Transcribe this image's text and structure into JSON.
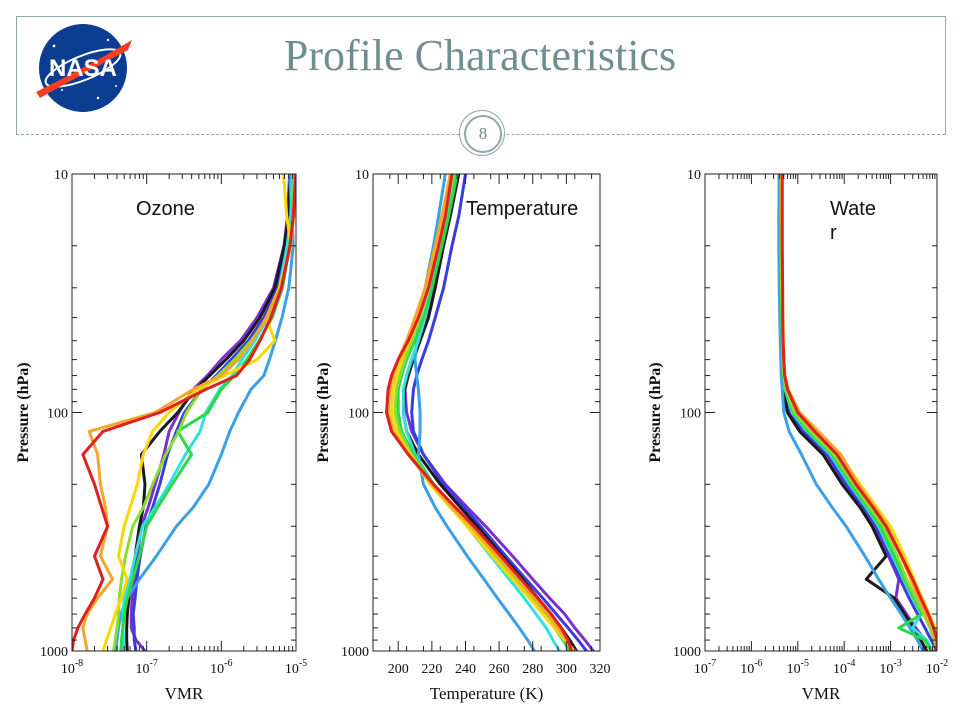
{
  "slide": {
    "title": "Profile Characteristics",
    "page_number": "8"
  },
  "logo": {
    "text": "NASA"
  },
  "colors": {
    "accent": "#6f8f8f",
    "series_palette": [
      "#7b2fd0",
      "#3b3be0",
      "#1a1a1a",
      "#3aa0e8",
      "#33e0e0",
      "#2ad84a",
      "#88dd33",
      "#ffd700",
      "#f2a62a",
      "#e02020"
    ]
  },
  "chart_data": [
    {
      "type": "line",
      "panel_label": "Ozone",
      "xlabel": "VMR",
      "ylabel": "Pressure (hPa)",
      "xscale": "log",
      "yscale": "log",
      "xlim": [
        1e-08,
        1e-05
      ],
      "ylim": [
        1000,
        10
      ],
      "x_ticks": [
        1e-08,
        1e-07,
        1e-06,
        1e-05
      ],
      "x_tick_labels": [
        {
          "base": "10",
          "exp": "-8"
        },
        {
          "base": "10",
          "exp": "-7"
        },
        {
          "base": "10",
          "exp": "-6"
        },
        {
          "base": "10",
          "exp": "-5"
        }
      ],
      "y_ticks": [
        10,
        100,
        1000
      ],
      "y_tick_labels": [
        "10",
        "100",
        "1000"
      ],
      "pressure_levels": [
        10,
        15,
        20,
        30,
        40,
        50,
        60,
        70,
        80,
        100,
        120,
        150,
        200,
        250,
        300,
        400,
        500,
        600,
        700,
        800,
        900,
        1000
      ],
      "series": [
        {
          "color": "#7b2fd0",
          "x": [
            8.2e-06,
            7.7e-06,
            6.9e-06,
            5e-06,
            3e-06,
            1.8e-06,
            1e-06,
            6.5e-07,
            4.2e-07,
            2.7e-07,
            2e-07,
            1.7e-07,
            1.3e-07,
            1.05e-07,
            8.5e-08,
            7.5e-08,
            6.8e-08,
            6.4e-08,
            6.2e-08,
            6.2e-08,
            7.2e-08,
            9.5e-08
          ]
        },
        {
          "color": "#3b3be0",
          "x": [
            8.6e-06,
            8e-06,
            7.2e-06,
            5.5e-06,
            3.7e-06,
            2.3e-06,
            1.35e-06,
            8.5e-07,
            5.5e-07,
            3.2e-07,
            2.5e-07,
            1.9e-07,
            1.5e-07,
            1.2e-07,
            9.8e-08,
            8.2e-08,
            7.4e-08,
            7e-08,
            6.6e-08,
            6.8e-08,
            6.8e-08,
            7.2e-08
          ]
        },
        {
          "color": "#1a1a1a",
          "x": [
            8.4e-06,
            7.9e-06,
            7e-06,
            5.2e-06,
            3.3e-06,
            2e-06,
            1.15e-06,
            7e-07,
            4.5e-07,
            2.6e-07,
            1.5e-07,
            8.5e-08,
            9.5e-08,
            9e-08,
            8e-08,
            7e-08,
            6.2e-08,
            5.8e-08,
            5.5e-08,
            5.4e-08,
            5.4e-08,
            5.5e-08
          ]
        },
        {
          "color": "#3aa0e8",
          "x": [
            8.2e-06,
            8.8e-06,
            9.2e-06,
            8e-06,
            6.5e-06,
            5.3e-06,
            4.4e-06,
            3.7e-06,
            2.5e-06,
            1.7e-06,
            1.3e-06,
            1e-06,
            6.8e-07,
            4.2e-07,
            2.5e-07,
            1.35e-07,
            8e-08,
            5.5e-08,
            4.5e-08,
            4.2e-08,
            4e-08,
            3.9e-08
          ]
        },
        {
          "color": "#33e0e0",
          "x": [
            9e-06,
            8.5e-06,
            7.6e-06,
            6e-06,
            4.2e-06,
            2.8e-06,
            1.9e-06,
            1.4e-06,
            9.5e-07,
            6.2e-07,
            5.2e-07,
            3.3e-07,
            2e-07,
            1.3e-07,
            8.8e-08,
            7e-08,
            6e-08,
            5e-08,
            4.8e-08,
            4.8e-08,
            4.9e-08,
            5e-08
          ]
        },
        {
          "color": "#2ad84a",
          "x": [
            9.5e-06,
            9e-06,
            8.2e-06,
            6.6e-06,
            4.8e-06,
            3.2e-06,
            2.2e-06,
            1.5e-06,
            1e-06,
            6.6e-07,
            2.6e-07,
            4e-07,
            2.2e-07,
            1.4e-07,
            1e-07,
            8e-08,
            6.5e-08,
            5.5e-08,
            5e-08,
            4.8e-08,
            4.6e-08,
            4.5e-08
          ]
        },
        {
          "color": "#88dd33",
          "x": [
            9.6e-06,
            9.1e-06,
            8.3e-06,
            6.4e-06,
            4.2e-06,
            2.5e-06,
            1.5e-06,
            9e-07,
            5.5e-07,
            3.4e-07,
            2.7e-07,
            1.8e-07,
            1.2e-07,
            9e-08,
            6.5e-08,
            5.2e-08,
            4.6e-08,
            4.3e-08,
            4.2e-08,
            4e-08,
            3.8e-08,
            3.6e-08
          ]
        },
        {
          "color": "#ffd700",
          "x": [
            6.8e-06,
            7.5e-06,
            8.6e-06,
            6e-06,
            4e-06,
            5.2e-06,
            3e-06,
            1.1e-06,
            4.8e-07,
            2e-07,
            1.2e-07,
            9e-08,
            7.5e-08,
            6e-08,
            5e-08,
            4.2e-08,
            5.5e-08,
            4.6e-08,
            3.8e-08,
            3.3e-08,
            2.9e-08,
            2.6e-08
          ]
        },
        {
          "color": "#f2a62a",
          "x": [
            9.9e-06,
            9.4e-06,
            8.4e-06,
            6.2e-06,
            4e-06,
            2.6e-06,
            1.7e-06,
            1e-06,
            4.2e-07,
            1.3e-07,
            1.7e-08,
            2.2e-08,
            2.4e-08,
            2.8e-08,
            3e-08,
            2.4e-08,
            3.5e-08,
            2.2e-08,
            1.6e-08,
            1.4e-08,
            1.5e-08,
            1.6e-08
          ]
        },
        {
          "color": "#e02020",
          "x": [
            9.9e-06,
            9.2e-06,
            8.3e-06,
            6.4e-06,
            4.6e-06,
            3.3e-06,
            2.4e-06,
            1.6e-06,
            6.2e-07,
            1.5e-07,
            2.6e-08,
            1.4e-08,
            2e-08,
            2.5e-08,
            3e-08,
            2e-08,
            2.6e-08,
            2e-08,
            1.5e-08,
            1.2e-08,
            1.05e-08,
            1e-08
          ]
        }
      ]
    },
    {
      "type": "line",
      "panel_label": "Temperature",
      "xlabel": "Temperature (K)",
      "ylabel": "Pressure (hPa)",
      "xscale": "linear",
      "yscale": "log",
      "xlim": [
        185,
        320
      ],
      "ylim": [
        1000,
        10
      ],
      "x_ticks": [
        200,
        220,
        240,
        260,
        280,
        300,
        320
      ],
      "x_tick_labels": [
        "200",
        "220",
        "240",
        "260",
        "280",
        "300",
        "320"
      ],
      "y_ticks": [
        10,
        100,
        1000
      ],
      "y_tick_labels": [
        "10",
        "100",
        "1000"
      ],
      "pressure_levels": [
        10,
        15,
        20,
        30,
        40,
        50,
        60,
        70,
        80,
        100,
        120,
        150,
        200,
        250,
        300,
        400,
        500,
        600,
        700,
        800,
        900,
        1000
      ],
      "series": [
        {
          "color": "#7b2fd0",
          "x": [
            235,
            230,
            226,
            221,
            217,
            212,
            208,
            205,
            204,
            205,
            208,
            215,
            228,
            241,
            252,
            268,
            280,
            290,
            299,
            305,
            311,
            316
          ]
        },
        {
          "color": "#3b3be0",
          "x": [
            240,
            236,
            232,
            227,
            222,
            218,
            214,
            211,
            209,
            208,
            209,
            215,
            227,
            239,
            249,
            264,
            276,
            286,
            294,
            301,
            307,
            312
          ]
        },
        {
          "color": "#1a1a1a",
          "x": [
            236,
            231,
            227,
            222,
            218,
            213,
            209,
            206,
            204,
            203,
            205,
            212,
            225,
            237,
            247,
            262,
            274,
            283,
            291,
            297,
            302,
            306
          ]
        },
        {
          "color": "#3aa0e8",
          "x": [
            228,
            224,
            221,
            216,
            213,
            211,
            210,
            211,
            212,
            213,
            213,
            212,
            215,
            222,
            229,
            241,
            251,
            259,
            266,
            272,
            277,
            281
          ]
        },
        {
          "color": "#33e0e0",
          "x": [
            234,
            229,
            225,
            220,
            216,
            212,
            208,
            205,
            203,
            203,
            205,
            210,
            221,
            232,
            241,
            255,
            266,
            275,
            282,
            288,
            292,
            296
          ]
        },
        {
          "color": "#2ad84a",
          "x": [
            235,
            230,
            226,
            220,
            215,
            210,
            205,
            202,
            200,
            200,
            202,
            209,
            221,
            233,
            243,
            258,
            270,
            279,
            287,
            293,
            298,
            302
          ]
        },
        {
          "color": "#88dd33",
          "x": [
            233,
            228,
            224,
            218,
            213,
            208,
            204,
            201,
            199,
            198,
            201,
            208,
            220,
            232,
            242,
            257,
            269,
            279,
            287,
            293,
            299,
            304
          ]
        },
        {
          "color": "#ffd700",
          "x": [
            232,
            227,
            223,
            217,
            212,
            207,
            202,
            199,
            197,
            196,
            199,
            207,
            219,
            231,
            241,
            256,
            268,
            278,
            286,
            293,
            299,
            305
          ]
        },
        {
          "color": "#f2a62a",
          "x": [
            231,
            226,
            222,
            216,
            210,
            205,
            200,
            197,
            195,
            194,
            197,
            206,
            220,
            232,
            243,
            259,
            271,
            281,
            289,
            295,
            300,
            304
          ]
        },
        {
          "color": "#e02020",
          "x": [
            232,
            228,
            224,
            218,
            212,
            206,
            200,
            196,
            194,
            193,
            196,
            206,
            221,
            234,
            245,
            261,
            273,
            283,
            291,
            297,
            301,
            303
          ]
        }
      ]
    },
    {
      "type": "line",
      "panel_label": "Wate\nr",
      "xlabel": "VMR",
      "ylabel": "Pressure (hPa)",
      "xscale": "log",
      "yscale": "log",
      "xlim": [
        1e-07,
        0.01
      ],
      "ylim": [
        1000,
        10
      ],
      "x_ticks": [
        1e-07,
        1e-06,
        1e-05,
        0.0001,
        0.001,
        0.01
      ],
      "x_tick_labels": [
        {
          "base": "10",
          "exp": "-7"
        },
        {
          "base": "10",
          "exp": "-6"
        },
        {
          "base": "10",
          "exp": "-5"
        },
        {
          "base": "10",
          "exp": "-4"
        },
        {
          "base": "10",
          "exp": "-3"
        },
        {
          "base": "10",
          "exp": "-2"
        }
      ],
      "y_ticks": [
        10,
        100,
        1000
      ],
      "y_tick_labels": [
        "10",
        "100",
        "1000"
      ],
      "pressure_levels": [
        10,
        15,
        20,
        30,
        40,
        50,
        60,
        70,
        80,
        100,
        120,
        150,
        200,
        250,
        300,
        400,
        500,
        600,
        700,
        800,
        900,
        1000
      ],
      "series": [
        {
          "color": "#7b2fd0",
          "x": [
            4e-06,
            4e-06,
            4.1e-06,
            4.1e-06,
            4.2e-06,
            4.3e-06,
            4.4e-06,
            4.5e-06,
            4.8e-06,
            6e-06,
            1.2e-05,
            4e-05,
            0.0001,
            0.00025,
            0.00045,
            0.0009,
            0.0015,
            0.0013,
            0.0022,
            0.0035,
            0.0055,
            0.008
          ]
        },
        {
          "color": "#3b3be0",
          "x": [
            4.2e-06,
            4.2e-06,
            4.2e-06,
            4.3e-06,
            4.3e-06,
            4.4e-06,
            4.5e-06,
            4.6e-06,
            5e-06,
            6.5e-06,
            1.3e-05,
            4.5e-05,
            0.00011,
            0.00027,
            0.0005,
            0.001,
            0.0016,
            0.0025,
            0.0038,
            0.0055,
            0.0075,
            0.01
          ]
        },
        {
          "color": "#1a1a1a",
          "x": [
            4.1e-06,
            4.1e-06,
            4.1e-06,
            4.2e-06,
            4.3e-06,
            4.4e-06,
            4.5e-06,
            4.6e-06,
            4.9e-06,
            6e-06,
            1.1e-05,
            3.5e-05,
            9e-05,
            0.00022,
            0.0004,
            0.0008,
            0.0003,
            0.0012,
            0.002,
            0.0032,
            0.0045,
            0.006
          ]
        },
        {
          "color": "#3aa0e8",
          "x": [
            4e-06,
            3.9e-06,
            3.9e-06,
            4e-06,
            4.1e-06,
            4.2e-06,
            4.3e-06,
            4.4e-06,
            4.6e-06,
            5e-06,
            6.5e-06,
            1.2e-05,
            2.5e-05,
            5.5e-05,
            0.00011,
            0.00028,
            0.00055,
            0.001,
            0.0017,
            0.0026,
            0.0038,
            0.005
          ]
        },
        {
          "color": "#33e0e0",
          "x": [
            4.3e-06,
            4.3e-06,
            4.3e-06,
            4.4e-06,
            4.5e-06,
            4.6e-06,
            4.7e-06,
            4.9e-06,
            5.3e-06,
            7.5e-06,
            1.6e-05,
            5e-05,
            0.00013,
            0.0003,
            0.00055,
            0.0011,
            0.0019,
            0.003,
            0.0045,
            0.003,
            0.006,
            0.008
          ]
        },
        {
          "color": "#2ad84a",
          "x": [
            4.3e-06,
            4.3e-06,
            4.4e-06,
            4.4e-06,
            4.5e-06,
            4.6e-06,
            4.7e-06,
            4.9e-06,
            5.5e-06,
            8e-06,
            1.7e-05,
            5.5e-05,
            0.00014,
            0.00032,
            0.0006,
            0.0012,
            0.002,
            0.0032,
            0.0048,
            0.0015,
            0.0055,
            0.0075
          ]
        },
        {
          "color": "#88dd33",
          "x": [
            4.4e-06,
            4.4e-06,
            4.5e-06,
            4.5e-06,
            4.6e-06,
            4.7e-06,
            4.8e-06,
            5e-06,
            5.6e-06,
            8.5e-06,
            1.9e-05,
            6e-05,
            0.00016,
            0.00036,
            0.0007,
            0.0014,
            0.0022,
            0.0035,
            0.0052,
            0.007,
            0.0088,
            0.01
          ]
        },
        {
          "color": "#ffd700",
          "x": [
            4.5e-06,
            4.5e-06,
            4.6e-06,
            4.6e-06,
            4.7e-06,
            4.8e-06,
            5e-06,
            5.2e-06,
            6e-06,
            1e-05,
            2.5e-05,
            8e-05,
            0.00022,
            0.0005,
            0.001,
            0.002,
            0.0032,
            0.0048,
            0.0068,
            0.009,
            0.01,
            0.01
          ]
        },
        {
          "color": "#f2a62a",
          "x": [
            4.6e-06,
            4.6e-06,
            4.6e-06,
            4.7e-06,
            4.8e-06,
            4.9e-06,
            5e-06,
            5.3e-06,
            6.2e-06,
            1.1e-05,
            2.8e-05,
            8.5e-05,
            0.0002,
            0.00045,
            0.00085,
            0.0017,
            0.0027,
            0.004,
            0.0058,
            0.0078,
            0.0095,
            0.01
          ]
        },
        {
          "color": "#e02020",
          "x": [
            4.6e-06,
            4.6e-06,
            4.6e-06,
            4.7e-06,
            4.7e-06,
            4.8e-06,
            5e-06,
            5.2e-06,
            6e-06,
            1e-05,
            2.3e-05,
            7e-05,
            0.00018,
            0.00042,
            0.0008,
            0.0017,
            0.003,
            0.0045,
            0.0065,
            0.0085,
            0.01,
            0.01
          ]
        }
      ]
    }
  ]
}
